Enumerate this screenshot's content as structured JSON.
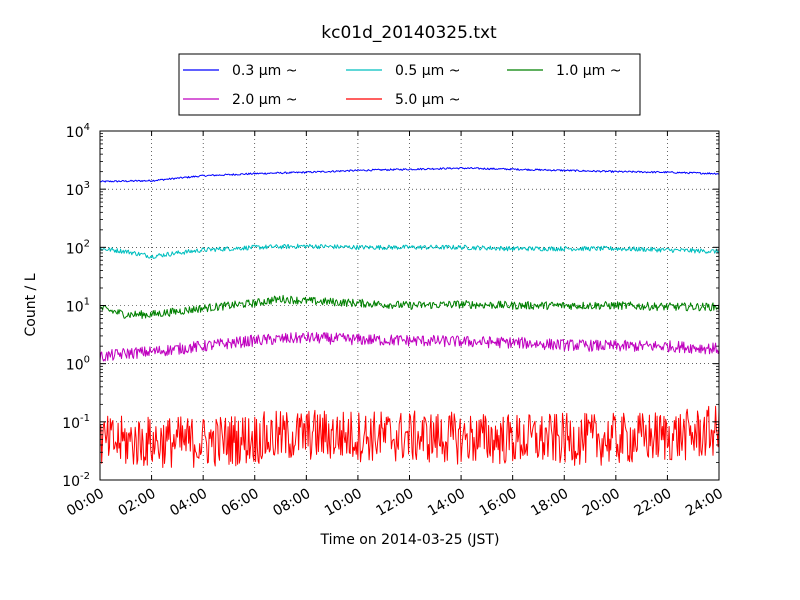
{
  "chart_data": {
    "type": "line",
    "title": "kc01d_20140325.txt",
    "xlabel": "Time on 2014-03-25 (JST)",
    "ylabel": "Count / L",
    "x_ticks": [
      "00:00",
      "02:00",
      "04:00",
      "06:00",
      "08:00",
      "10:00",
      "12:00",
      "14:00",
      "16:00",
      "18:00",
      "20:00",
      "22:00",
      "24:00"
    ],
    "y_scale": "log",
    "ylim": [
      0.01,
      10000
    ],
    "y_ticks": [
      {
        "base": "10",
        "exp": "-2"
      },
      {
        "base": "10",
        "exp": "-1"
      },
      {
        "base": "10",
        "exp": "0"
      },
      {
        "base": "10",
        "exp": "1"
      },
      {
        "base": "10",
        "exp": "2"
      },
      {
        "base": "10",
        "exp": "3"
      },
      {
        "base": "10",
        "exp": "4"
      }
    ],
    "grid": true,
    "legend_position": "top",
    "series": [
      {
        "name": "0.3 μm ~",
        "color": "#0000ff",
        "points": [
          [
            0,
            1350
          ],
          [
            1,
            1400
          ],
          [
            2,
            1700
          ],
          [
            3,
            1850
          ],
          [
            4,
            1950
          ],
          [
            5,
            2100
          ],
          [
            6,
            2200
          ],
          [
            7,
            2300
          ],
          [
            8,
            2200
          ],
          [
            9,
            2100
          ],
          [
            10,
            2000
          ],
          [
            11,
            1950
          ],
          [
            12,
            1850
          ],
          [
            13,
            1800
          ],
          [
            14,
            1750
          ],
          [
            15,
            2100
          ],
          [
            16,
            2200
          ],
          [
            17,
            2150
          ],
          [
            18,
            2200
          ],
          [
            19,
            2300
          ],
          [
            20,
            2400
          ],
          [
            21,
            2200
          ],
          [
            22,
            2100
          ],
          [
            23,
            2150
          ],
          [
            24,
            2200
          ]
        ],
        "noise": 0.015
      },
      {
        "name": "0.5 μm ~",
        "color": "#00bfbf",
        "points": [
          [
            0,
            95
          ],
          [
            0.5,
            85
          ],
          [
            1,
            70
          ],
          [
            1.5,
            80
          ],
          [
            2,
            90
          ],
          [
            3,
            100
          ],
          [
            4,
            105
          ],
          [
            5,
            100
          ],
          [
            6,
            100
          ],
          [
            7,
            100
          ],
          [
            8,
            95
          ],
          [
            9,
            95
          ],
          [
            10,
            95
          ],
          [
            11,
            90
          ],
          [
            12,
            85
          ],
          [
            13,
            85
          ],
          [
            14,
            80
          ],
          [
            14.5,
            100
          ],
          [
            15.3,
            125
          ],
          [
            16,
            110
          ],
          [
            17,
            100
          ],
          [
            18,
            95
          ],
          [
            19,
            105
          ],
          [
            19.5,
            130
          ],
          [
            20,
            115
          ],
          [
            21,
            95
          ],
          [
            22,
            90
          ],
          [
            23,
            95
          ],
          [
            23.5,
            105
          ],
          [
            24,
            100
          ]
        ],
        "noise": 0.04
      },
      {
        "name": "1.0 μm ~",
        "color": "#008000",
        "points": [
          [
            0,
            9
          ],
          [
            0.5,
            7
          ],
          [
            1,
            7
          ],
          [
            2,
            9
          ],
          [
            3,
            11
          ],
          [
            3.5,
            13
          ],
          [
            4,
            12
          ],
          [
            5,
            11
          ],
          [
            6,
            10
          ],
          [
            7,
            10.5
          ],
          [
            8,
            10
          ],
          [
            9,
            10
          ],
          [
            10,
            10
          ],
          [
            11,
            9.5
          ],
          [
            12,
            9.5
          ],
          [
            13,
            9
          ],
          [
            14,
            10
          ],
          [
            14.5,
            18
          ],
          [
            15.5,
            19
          ],
          [
            16,
            15
          ],
          [
            17,
            13
          ],
          [
            18,
            12
          ],
          [
            19,
            13
          ],
          [
            19.5,
            14
          ],
          [
            20,
            13
          ],
          [
            21,
            12
          ],
          [
            22,
            12
          ],
          [
            23,
            12
          ],
          [
            24,
            11
          ]
        ],
        "noise": 0.07
      },
      {
        "name": "2.0 μm ~",
        "color": "#bf00bf",
        "points": [
          [
            0,
            1.3
          ],
          [
            0.5,
            1.5
          ],
          [
            1,
            1.6
          ],
          [
            2,
            2.0
          ],
          [
            3,
            2.5
          ],
          [
            4,
            2.8
          ],
          [
            5,
            2.6
          ],
          [
            6,
            2.5
          ],
          [
            7,
            2.4
          ],
          [
            8,
            2.3
          ],
          [
            9,
            2.1
          ],
          [
            10,
            2.0
          ],
          [
            11,
            2.0
          ],
          [
            12,
            1.8
          ],
          [
            13,
            1.9
          ],
          [
            14,
            1.8
          ],
          [
            14.5,
            4
          ],
          [
            15.5,
            4.5
          ],
          [
            16,
            3.8
          ],
          [
            17,
            2.8
          ],
          [
            18,
            2.5
          ],
          [
            19,
            2.4
          ],
          [
            20,
            2.6
          ],
          [
            21,
            2.3
          ],
          [
            22,
            2.2
          ],
          [
            23,
            2.2
          ],
          [
            24,
            2.0
          ]
        ],
        "noise": 0.1
      },
      {
        "name": "5.0 μm ~",
        "color": "#ff0000",
        "points": [
          [
            0,
            0.045
          ],
          [
            2,
            0.045
          ],
          [
            4,
            0.06
          ],
          [
            6,
            0.055
          ],
          [
            8,
            0.05
          ],
          [
            10,
            0.05
          ],
          [
            11.5,
            0.06
          ],
          [
            12,
            0.07
          ],
          [
            13,
            0.05
          ],
          [
            14,
            0.06
          ],
          [
            15,
            0.12
          ],
          [
            15.8,
            0.16
          ],
          [
            16.5,
            0.1
          ],
          [
            17,
            0.06
          ],
          [
            18,
            0.04
          ],
          [
            20,
            0.04
          ],
          [
            22,
            0.035
          ],
          [
            24,
            0.03
          ]
        ],
        "noise": 0.45
      }
    ]
  }
}
